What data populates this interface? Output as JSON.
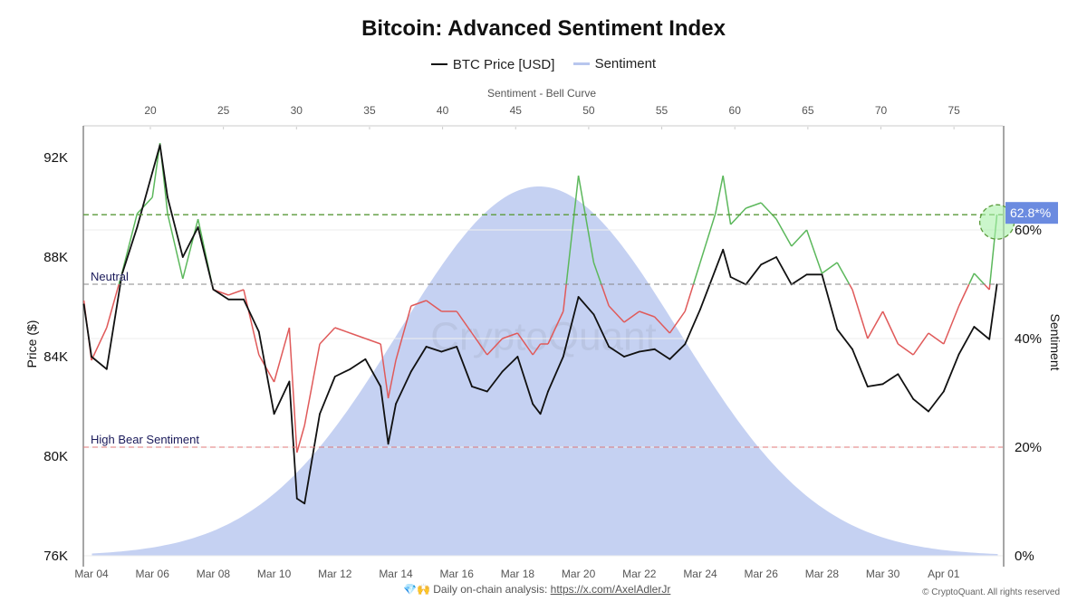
{
  "header": {
    "title": "Bitcoin: Advanced Sentiment Index"
  },
  "legend": [
    {
      "label": "BTC Price [USD]",
      "color": "#111111"
    },
    {
      "label": "Sentiment",
      "color": "#b8c6ee"
    }
  ],
  "footer": {
    "emoji": "💎🙌",
    "text": "Daily on-chain analysis: ",
    "link": "https://x.com/AxelAdlerJr",
    "copyright": "© CryptoQuant. All rights reserved"
  },
  "watermark": "CryptoQuant",
  "chart_data": {
    "type": "line",
    "title": "Bitcoin: Advanced Sentiment Index",
    "ylabel_left": "Price ($)",
    "ylabel_right": "Sentiment",
    "xlabel_top": "Sentiment - Bell Curve",
    "x_ticks": [
      "Mar 04",
      "Mar 06",
      "Mar 08",
      "Mar 10",
      "Mar 12",
      "Mar 14",
      "Mar 16",
      "Mar 18",
      "Mar 20",
      "Mar 22",
      "Mar 24",
      "Mar 26",
      "Mar 28",
      "Mar 30",
      "Apr 01"
    ],
    "y_left_ticks": [
      "76K",
      "80K",
      "84K",
      "88K",
      "92K"
    ],
    "y_left_range": [
      76000,
      93000
    ],
    "y_right_ticks": [
      "0%",
      "20%",
      "40%",
      "60%"
    ],
    "y_right_range": [
      0,
      79
    ],
    "x_top_ticks": [
      "20",
      "25",
      "30",
      "35",
      "40",
      "45",
      "50",
      "55",
      "60",
      "65",
      "70",
      "75"
    ],
    "colors": {
      "price": "#111111",
      "sentiment_bull": "#5cb85c",
      "sentiment_bear": "#e05a5a",
      "bell": "#c5d1f2",
      "neutral": "#888888",
      "bear_line": "#e07a7a",
      "current_line": "#5a9a3a",
      "callout": "#6b8be0"
    },
    "bell_curve": {
      "mean": 46.6,
      "sd": 9.6,
      "peak_pct": 68,
      "range": [
        16,
        78
      ]
    },
    "reference_lines": [
      {
        "label": "Neutral",
        "value": 50
      },
      {
        "label": "High Bear Sentiment",
        "value": 20
      },
      {
        "label": "",
        "value": 62.8
      }
    ],
    "current_value_label": "62.8*%",
    "series": [
      {
        "name": "BTC Price [USD]",
        "points": [
          [
            "Mar 03 18:00",
            86100
          ],
          [
            "Mar 04 00:00",
            84000
          ],
          [
            "Mar 04 12:00",
            83500
          ],
          [
            "Mar 05 00:00",
            87300
          ],
          [
            "Mar 05 12:00",
            89200
          ],
          [
            "Mar 06 00:00",
            91400
          ],
          [
            "Mar 06 06:00",
            92500
          ],
          [
            "Mar 06 12:00",
            90400
          ],
          [
            "Mar 07 00:00",
            88000
          ],
          [
            "Mar 07 12:00",
            89200
          ],
          [
            "Mar 08 00:00",
            86700
          ],
          [
            "Mar 08 12:00",
            86300
          ],
          [
            "Mar 09 00:00",
            86300
          ],
          [
            "Mar 09 12:00",
            85000
          ],
          [
            "Mar 10 00:00",
            81700
          ],
          [
            "Mar 10 12:00",
            83000
          ],
          [
            "Mar 10 18:00",
            78300
          ],
          [
            "Mar 11 00:00",
            78100
          ],
          [
            "Mar 11 12:00",
            81700
          ],
          [
            "Mar 12 00:00",
            83200
          ],
          [
            "Mar 12 12:00",
            83500
          ],
          [
            "Mar 13 00:00",
            83900
          ],
          [
            "Mar 13 12:00",
            82800
          ],
          [
            "Mar 13 18:00",
            80500
          ],
          [
            "Mar 14 00:00",
            82100
          ],
          [
            "Mar 14 12:00",
            83400
          ],
          [
            "Mar 15 00:00",
            84400
          ],
          [
            "Mar 15 12:00",
            84200
          ],
          [
            "Mar 16 00:00",
            84400
          ],
          [
            "Mar 16 12:00",
            82800
          ],
          [
            "Mar 17 00:00",
            82600
          ],
          [
            "Mar 17 12:00",
            83400
          ],
          [
            "Mar 18 00:00",
            84000
          ],
          [
            "Mar 18 12:00",
            82100
          ],
          [
            "Mar 18 18:00",
            81700
          ],
          [
            "Mar 19 00:00",
            82600
          ],
          [
            "Mar 19 12:00",
            84000
          ],
          [
            "Mar 20 00:00",
            86400
          ],
          [
            "Mar 20 12:00",
            85700
          ],
          [
            "Mar 21 00:00",
            84400
          ],
          [
            "Mar 21 12:00",
            84000
          ],
          [
            "Mar 22 00:00",
            84200
          ],
          [
            "Mar 22 12:00",
            84300
          ],
          [
            "Mar 23 00:00",
            83900
          ],
          [
            "Mar 23 12:00",
            84500
          ],
          [
            "Mar 24 00:00",
            85900
          ],
          [
            "Mar 24 12:00",
            87500
          ],
          [
            "Mar 24 18:00",
            88300
          ],
          [
            "Mar 25 00:00",
            87200
          ],
          [
            "Mar 25 12:00",
            86900
          ],
          [
            "Mar 26 00:00",
            87700
          ],
          [
            "Mar 26 12:00",
            88000
          ],
          [
            "Mar 27 00:00",
            86900
          ],
          [
            "Mar 27 12:00",
            87300
          ],
          [
            "Mar 28 00:00",
            87300
          ],
          [
            "Mar 28 12:00",
            85100
          ],
          [
            "Mar 29 00:00",
            84300
          ],
          [
            "Mar 29 12:00",
            82800
          ],
          [
            "Mar 30 00:00",
            82900
          ],
          [
            "Mar 30 12:00",
            83300
          ],
          [
            "Mar 31 00:00",
            82300
          ],
          [
            "Mar 31 12:00",
            81800
          ],
          [
            "Apr 01 00:00",
            82600
          ],
          [
            "Apr 01 12:00",
            84100
          ],
          [
            "Apr 02 00:00",
            85200
          ],
          [
            "Apr 02 12:00",
            84700
          ],
          [
            "Apr 02 18:00",
            86900
          ]
        ]
      },
      {
        "name": "Sentiment",
        "points": [
          [
            "Mar 03 18:00",
            47
          ],
          [
            "Mar 04 00:00",
            36
          ],
          [
            "Mar 04 12:00",
            42
          ],
          [
            "Mar 05 00:00",
            52
          ],
          [
            "Mar 05 12:00",
            63
          ],
          [
            "Mar 06 00:00",
            66
          ],
          [
            "Mar 06 06:00",
            76
          ],
          [
            "Mar 06 12:00",
            63
          ],
          [
            "Mar 07 00:00",
            51
          ],
          [
            "Mar 07 12:00",
            62
          ],
          [
            "Mar 08 00:00",
            49
          ],
          [
            "Mar 08 12:00",
            48
          ],
          [
            "Mar 09 00:00",
            49
          ],
          [
            "Mar 09 12:00",
            37
          ],
          [
            "Mar 10 00:00",
            32
          ],
          [
            "Mar 10 12:00",
            42
          ],
          [
            "Mar 10 18:00",
            19
          ],
          [
            "Mar 11 00:00",
            24
          ],
          [
            "Mar 11 12:00",
            39
          ],
          [
            "Mar 12 00:00",
            42
          ],
          [
            "Mar 12 12:00",
            41
          ],
          [
            "Mar 13 00:00",
            40
          ],
          [
            "Mar 13 12:00",
            39
          ],
          [
            "Mar 13 18:00",
            29
          ],
          [
            "Mar 14 00:00",
            36
          ],
          [
            "Mar 14 12:00",
            46
          ],
          [
            "Mar 15 00:00",
            47
          ],
          [
            "Mar 15 12:00",
            45
          ],
          [
            "Mar 16 00:00",
            45
          ],
          [
            "Mar 16 12:00",
            41
          ],
          [
            "Mar 17 00:00",
            37
          ],
          [
            "Mar 17 12:00",
            40
          ],
          [
            "Mar 18 00:00",
            41
          ],
          [
            "Mar 18 12:00",
            37
          ],
          [
            "Mar 18 18:00",
            39
          ],
          [
            "Mar 19 00:00",
            39
          ],
          [
            "Mar 19 12:00",
            45
          ],
          [
            "Mar 20 00:00",
            70
          ],
          [
            "Mar 20 12:00",
            54
          ],
          [
            "Mar 21 00:00",
            46
          ],
          [
            "Mar 21 12:00",
            43
          ],
          [
            "Mar 22 00:00",
            45
          ],
          [
            "Mar 22 12:00",
            44
          ],
          [
            "Mar 23 00:00",
            41
          ],
          [
            "Mar 23 12:00",
            45
          ],
          [
            "Mar 24 00:00",
            54
          ],
          [
            "Mar 24 12:00",
            63
          ],
          [
            "Mar 24 18:00",
            70
          ],
          [
            "Mar 25 00:00",
            61
          ],
          [
            "Mar 25 12:00",
            64
          ],
          [
            "Mar 26 00:00",
            65
          ],
          [
            "Mar 26 12:00",
            62
          ],
          [
            "Mar 27 00:00",
            57
          ],
          [
            "Mar 27 12:00",
            60
          ],
          [
            "Mar 28 00:00",
            52
          ],
          [
            "Mar 28 12:00",
            54
          ],
          [
            "Mar 29 00:00",
            49
          ],
          [
            "Mar 29 12:00",
            40
          ],
          [
            "Mar 30 00:00",
            45
          ],
          [
            "Mar 30 12:00",
            39
          ],
          [
            "Mar 31 00:00",
            37
          ],
          [
            "Mar 31 12:00",
            41
          ],
          [
            "Apr 01 00:00",
            39
          ],
          [
            "Apr 01 12:00",
            46
          ],
          [
            "Apr 02 00:00",
            52
          ],
          [
            "Apr 02 12:00",
            49
          ],
          [
            "Apr 02 18:00",
            62.8
          ]
        ]
      }
    ]
  }
}
